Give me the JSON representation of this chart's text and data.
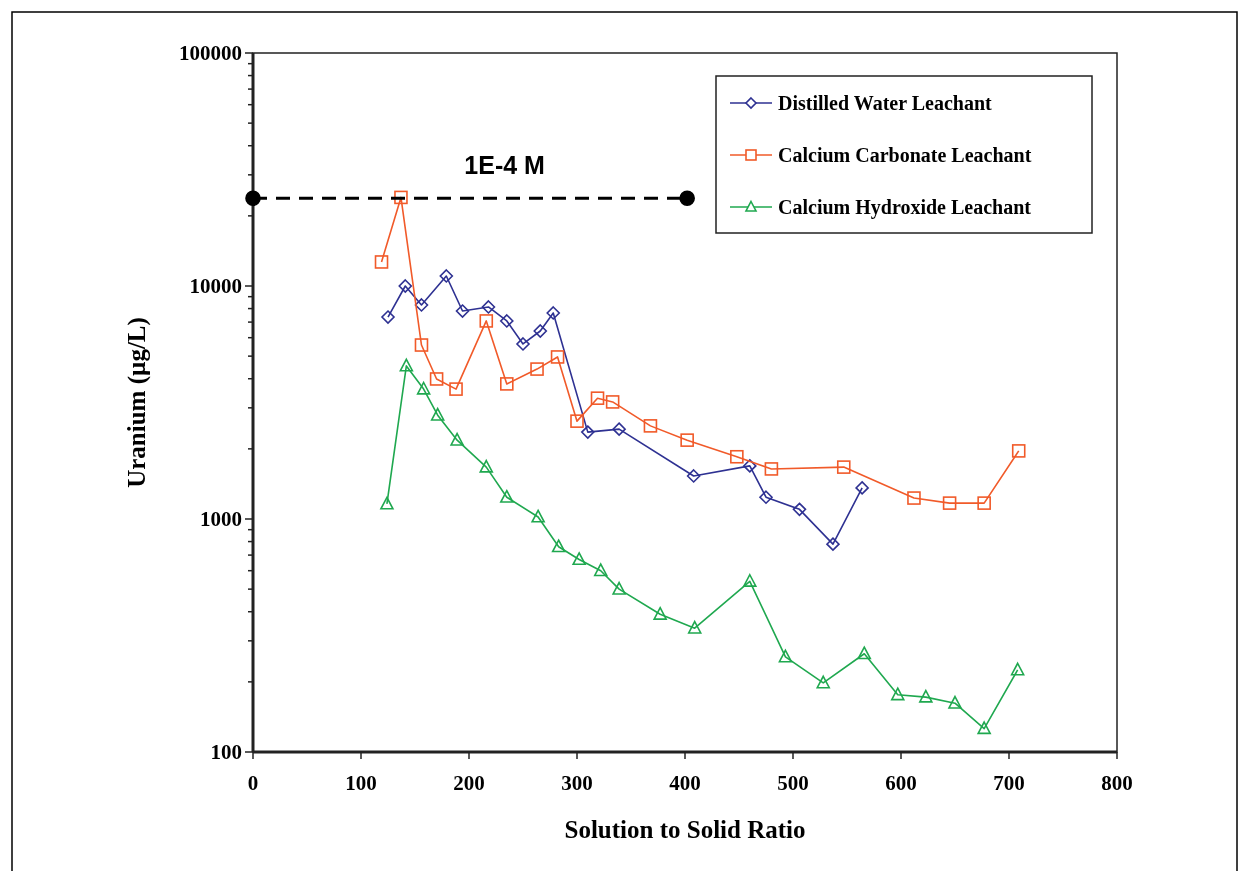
{
  "chart_data": {
    "type": "line",
    "xlabel": "Solution to Solid Ratio",
    "ylabel": "Uranium (µg/L)",
    "xlim": [
      0,
      800
    ],
    "xticks": [
      0,
      100,
      200,
      300,
      400,
      500,
      600,
      700,
      800
    ],
    "ylim": [
      100,
      100000
    ],
    "log": "y",
    "yticks": [
      100,
      {
        "value": 200,
        "label": null
      },
      {
        "value": 300,
        "label": null
      },
      {
        "value": 400,
        "label": null
      },
      {
        "value": 500,
        "label": null
      },
      {
        "value": 600,
        "label": null
      },
      {
        "value": 700,
        "label": null
      },
      {
        "value": 800,
        "label": null
      },
      {
        "value": 900,
        "label": null
      },
      1000,
      {
        "value": 2000,
        "label": null
      },
      {
        "value": 3000,
        "label": null
      },
      {
        "value": 4000,
        "label": null
      },
      {
        "value": 5000,
        "label": null
      },
      {
        "value": 6000,
        "label": null
      },
      {
        "value": 7000,
        "label": null
      },
      {
        "value": 8000,
        "label": null
      },
      {
        "value": 9000,
        "label": null
      },
      10000,
      {
        "value": 20000,
        "label": null
      },
      {
        "value": 30000,
        "label": null
      },
      {
        "value": 40000,
        "label": null
      },
      {
        "value": 50000,
        "label": null
      },
      {
        "value": 60000,
        "label": null
      },
      {
        "value": 70000,
        "label": null
      },
      {
        "value": 80000,
        "label": null
      },
      {
        "value": 90000,
        "label": null
      },
      100000
    ],
    "grid": false,
    "legend": "top right",
    "annotations": [
      {
        "text": "1E-4 M",
        "x": 233,
        "y": 23800
      }
    ],
    "series": [
      {
        "name": "Distilled Water Leachant",
        "color": "#2e3192",
        "marker": "diamond",
        "x": [
          125,
          141,
          156,
          179,
          194,
          218,
          235,
          250,
          266,
          278,
          310,
          339,
          408,
          460,
          475,
          506,
          537,
          564
        ],
        "values": [
          7360,
          10000,
          8290,
          11040,
          7810,
          8130,
          7080,
          5640,
          6410,
          7660,
          2360,
          2430,
          1530,
          1690,
          1240,
          1100,
          780,
          1360
        ]
      },
      {
        "name": "Calcium Carbonate Leachant",
        "color": "#f15a29",
        "marker": "square",
        "x": [
          119,
          137,
          156,
          170,
          188,
          216,
          235,
          263,
          282,
          300,
          319,
          333,
          368,
          402,
          448,
          480,
          547,
          612,
          645,
          677,
          709
        ],
        "values": [
          12680,
          24000,
          5580,
          3990,
          3610,
          7080,
          3800,
          4400,
          4960,
          2630,
          3300,
          3180,
          2510,
          2180,
          1850,
          1640,
          1670,
          1230,
          1170,
          1170,
          1960
        ]
      },
      {
        "name": "Calcium Hydroxide Leachant",
        "color": "#1fa84f",
        "marker": "triangle",
        "x": [
          124,
          142,
          158,
          171,
          189,
          216,
          235,
          264,
          283,
          302,
          322,
          339,
          377,
          409,
          460,
          493,
          528,
          566,
          597,
          623,
          650,
          677,
          708
        ],
        "values": [
          1160,
          4540,
          3610,
          2790,
          2180,
          1670,
          1240,
          1020,
          760,
          670,
          600,
          500,
          390,
          340,
          540,
          256,
          198,
          264,
          176,
          172,
          162,
          126,
          225
        ]
      },
      {
        "color": "#000000",
        "marker": "circle",
        "line_style": "dashed",
        "x": [
          0,
          402
        ],
        "values": [
          23800,
          23800
        ]
      }
    ]
  }
}
